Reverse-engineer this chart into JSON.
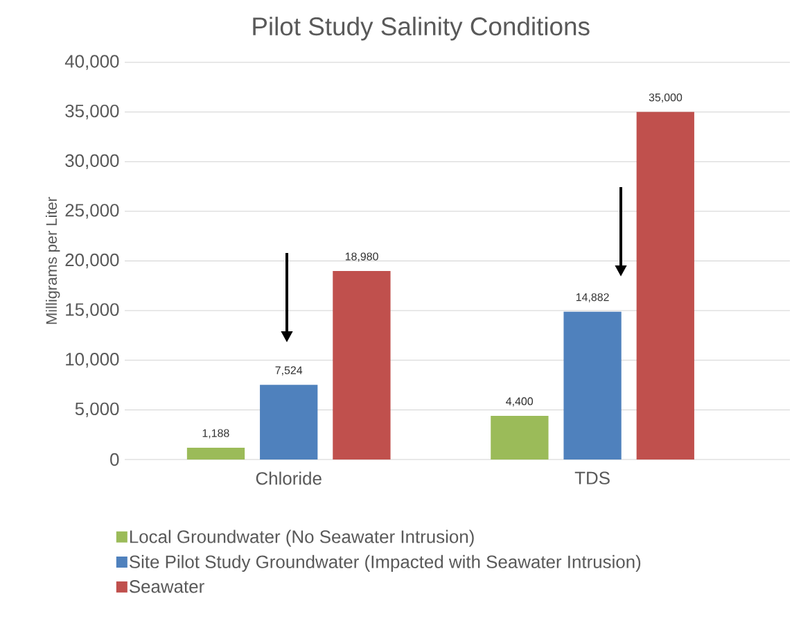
{
  "chart_data": {
    "type": "bar",
    "title": "Pilot Study Salinity Conditions",
    "ylabel": "Milligrams per Liter",
    "categories": [
      "Chloride",
      "TDS"
    ],
    "series": [
      {
        "name": "Local Groundwater (No Seawater Intrusion)",
        "color": "#9bbb59",
        "values": [
          1188,
          4400
        ],
        "value_labels": [
          "1,188",
          "4,400"
        ]
      },
      {
        "name": "Site Pilot Study Groundwater (Impacted with Seawater Intrusion)",
        "color": "#4f81bd",
        "values": [
          7524,
          14882
        ],
        "value_labels": [
          "7,524",
          "14,882"
        ]
      },
      {
        "name": "Seawater",
        "color": "#c0504d",
        "values": [
          18980,
          35000
        ],
        "value_labels": [
          "18,980",
          "35,000"
        ]
      }
    ],
    "ylim": [
      0,
      40000
    ],
    "yticks": [
      {
        "value": 0,
        "label": "0"
      },
      {
        "value": 5000,
        "label": "5,000"
      },
      {
        "value": 10000,
        "label": "10,000"
      },
      {
        "value": 15000,
        "label": "15,000"
      },
      {
        "value": 20000,
        "label": "20,000"
      },
      {
        "value": 25000,
        "label": "25,000"
      },
      {
        "value": 30000,
        "label": "30,000"
      },
      {
        "value": 35000,
        "label": "35,000"
      },
      {
        "value": 40000,
        "label": "40,000"
      }
    ],
    "grid": "y",
    "legend": "bottom"
  }
}
